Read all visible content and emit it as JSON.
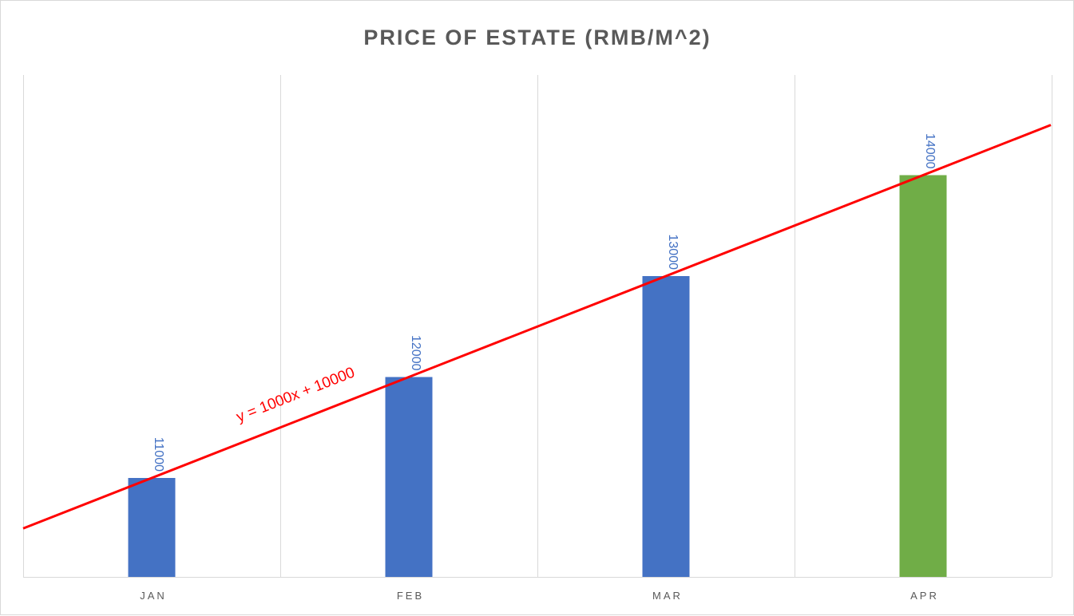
{
  "chart_data": {
    "type": "bar",
    "title": "PRICE OF ESTATE (RMB/M^2)",
    "xlabel": "",
    "ylabel": "",
    "categories": [
      "JAN",
      "FEB",
      "MAR",
      "APR"
    ],
    "values": [
      11000,
      12000,
      13000,
      14000
    ],
    "data_labels": [
      "11000",
      "12000",
      "13000",
      "14000"
    ],
    "bar_colors": [
      "#4472c4",
      "#4472c4",
      "#4472c4",
      "#70ad47"
    ],
    "ylim": [
      10000,
      14000
    ],
    "grid": "vertical",
    "legend": "none",
    "trendline": {
      "type": "linear",
      "slope": 1000,
      "intercept": 10000,
      "equation": "y = 1000x + 10000",
      "color": "#ff0000"
    }
  },
  "colors": {
    "axis_text": "#595959",
    "gridline": "#d9d9d9",
    "data_label": "#4472c4"
  }
}
